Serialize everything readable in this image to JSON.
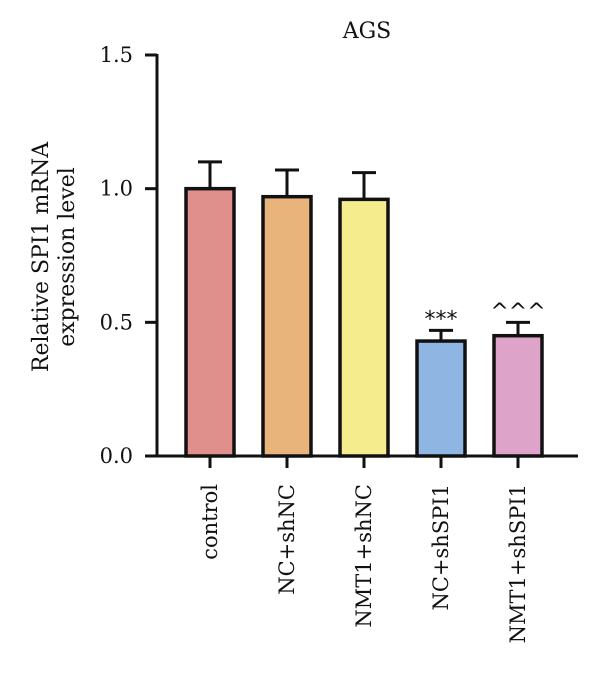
{
  "chart_data": {
    "type": "bar",
    "title": "AGS",
    "ylabel": [
      "Relative SPI1 mRNA",
      "expression level"
    ],
    "xlabel": "",
    "categories": [
      "control",
      "NC+shNC",
      "NMT1+shNC",
      "NC+shSPI1",
      "NMT1+shSPI1"
    ],
    "values": [
      1.0,
      0.97,
      0.96,
      0.43,
      0.45
    ],
    "errors": [
      0.1,
      0.1,
      0.1,
      0.04,
      0.05
    ],
    "significance": [
      "",
      "",
      "",
      "***",
      "^^^"
    ],
    "colors": [
      "#E0908C",
      "#E9B37C",
      "#F5EC8E",
      "#8FB6E3",
      "#DDA3C9"
    ],
    "ylim": [
      0,
      1.5
    ],
    "yticks": [
      0.0,
      0.5,
      1.0,
      1.5
    ],
    "ytick_labels": [
      "0.0",
      "0.5",
      "1.0",
      "1.5"
    ],
    "grid": false,
    "legend": "none"
  }
}
